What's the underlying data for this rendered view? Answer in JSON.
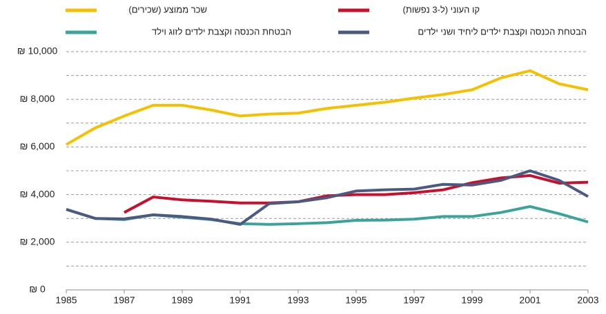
{
  "chart_data": {
    "type": "line",
    "x": [
      1985,
      1986,
      1987,
      1988,
      1989,
      1990,
      1991,
      1992,
      1993,
      1994,
      1995,
      1996,
      1997,
      1998,
      1999,
      2000,
      2001,
      2002,
      2003
    ],
    "xlim": [
      1985,
      2003
    ],
    "xticks": [
      1985,
      1987,
      1989,
      1991,
      1993,
      1995,
      1997,
      1999,
      2001,
      2003
    ],
    "ylim": [
      0,
      10000
    ],
    "yticks": [
      {
        "value": 0,
        "label": "₪ 0"
      },
      {
        "value": 2000,
        "label": "₪ 2,000"
      },
      {
        "value": 4000,
        "label": "₪ 4,000"
      },
      {
        "value": 6000,
        "label": "₪ 6,000"
      },
      {
        "value": 8000,
        "label": "₪ 8,000"
      },
      {
        "value": 10000,
        "label": "₪ 10,000"
      }
    ],
    "minor_yticks": [
      1000,
      3000,
      5000,
      7000,
      9000
    ],
    "grid": true,
    "series": [
      {
        "name": "שכר ממוצע (שכירים)",
        "color": "#f5c000",
        "values": [
          6100,
          6800,
          7300,
          7750,
          7750,
          7550,
          7300,
          7380,
          7420,
          7620,
          7750,
          7880,
          8050,
          8200,
          8400,
          8900,
          9200,
          8650,
          8400
        ]
      },
      {
        "name": "קו העוני (ל-3 נפשות)",
        "color": "#c8102e",
        "values": [
          null,
          null,
          3250,
          3900,
          3780,
          3720,
          3650,
          3650,
          3700,
          3950,
          4000,
          4000,
          4080,
          4200,
          4500,
          4700,
          4800,
          4480,
          4520
        ]
      },
      {
        "name": "הבטחת הכנסה וקצבת ילדים לזוג וילד",
        "color": "#3aa39a",
        "values": [
          3380,
          3000,
          2950,
          3150,
          3050,
          2950,
          2780,
          2750,
          2780,
          2820,
          2920,
          2930,
          2970,
          3080,
          3080,
          3250,
          3500,
          3200,
          2850
        ]
      },
      {
        "name": "הבטחת הכנסה וקצבת ילדים ליחיד ושני ילדים",
        "color": "#4a5a80",
        "values": [
          3380,
          3000,
          2980,
          3150,
          3080,
          2970,
          2750,
          3620,
          3700,
          3870,
          4150,
          4200,
          4230,
          4430,
          4400,
          4600,
          5000,
          4600,
          3920
        ]
      }
    ]
  }
}
